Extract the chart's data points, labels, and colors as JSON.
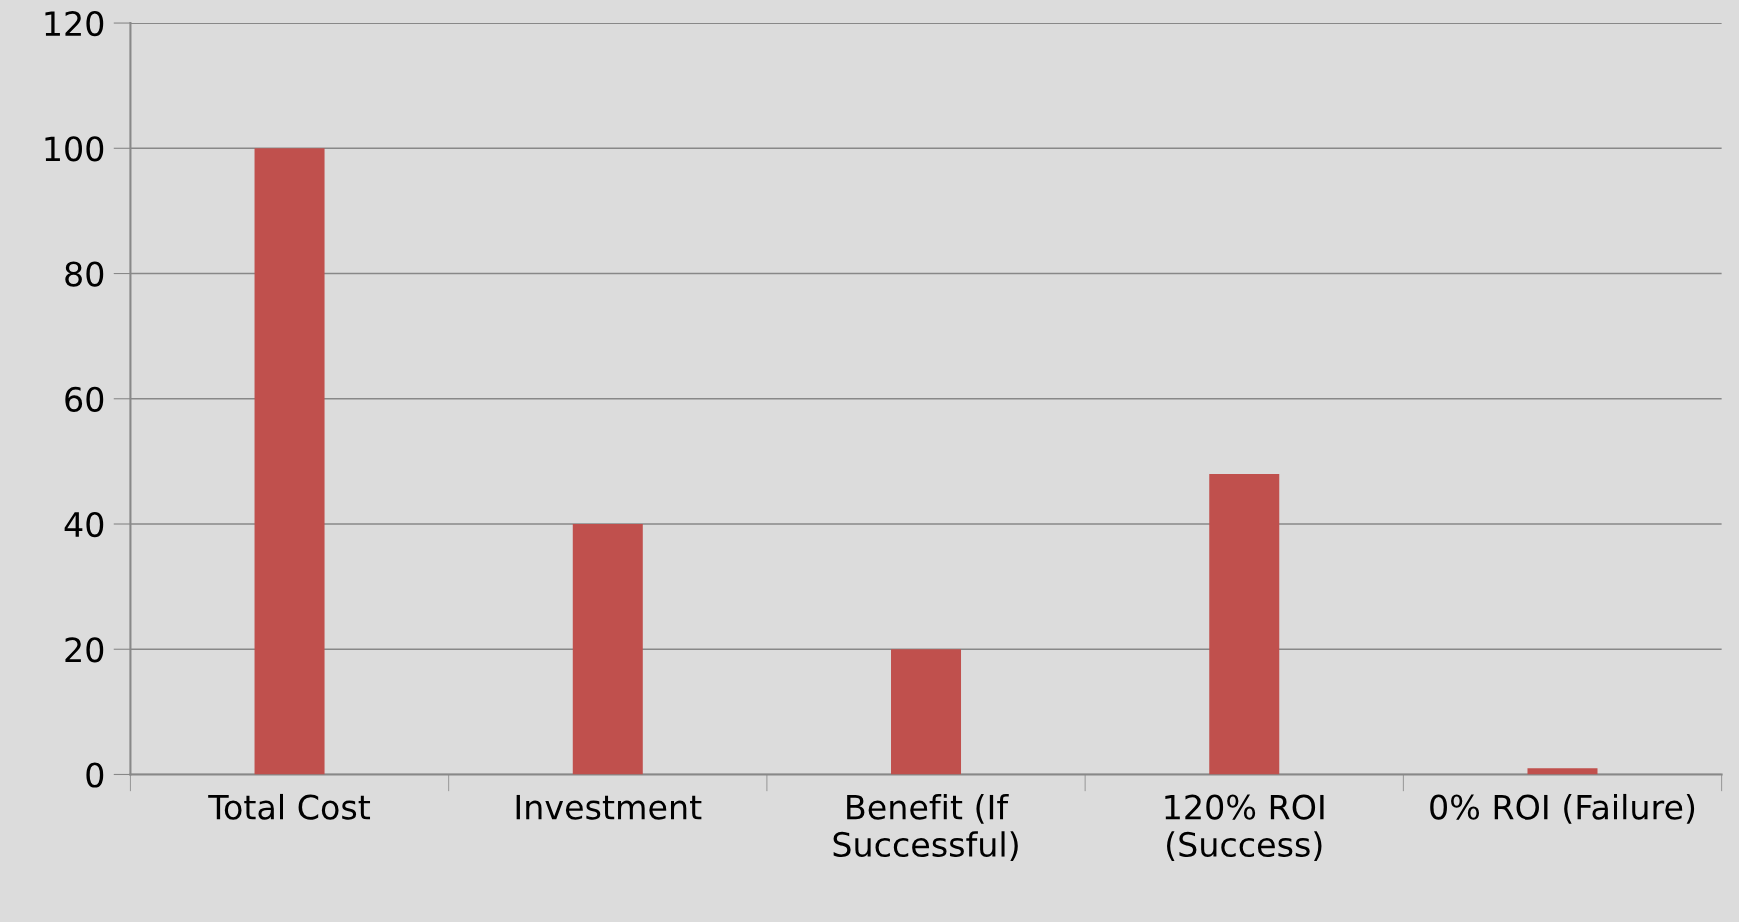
{
  "chart_data": {
    "type": "bar",
    "categories": [
      "Total Cost",
      "Investment",
      "Benefit (If\nSuccessful)",
      "120% ROI\n(Success)",
      "0% ROI (Failure)"
    ],
    "values": [
      100,
      40,
      20,
      48,
      1
    ],
    "color": "#c0504d",
    "ylim": [
      0,
      120
    ],
    "yticks": [
      0,
      20,
      40,
      60,
      80,
      100,
      120
    ],
    "grid": "y"
  }
}
